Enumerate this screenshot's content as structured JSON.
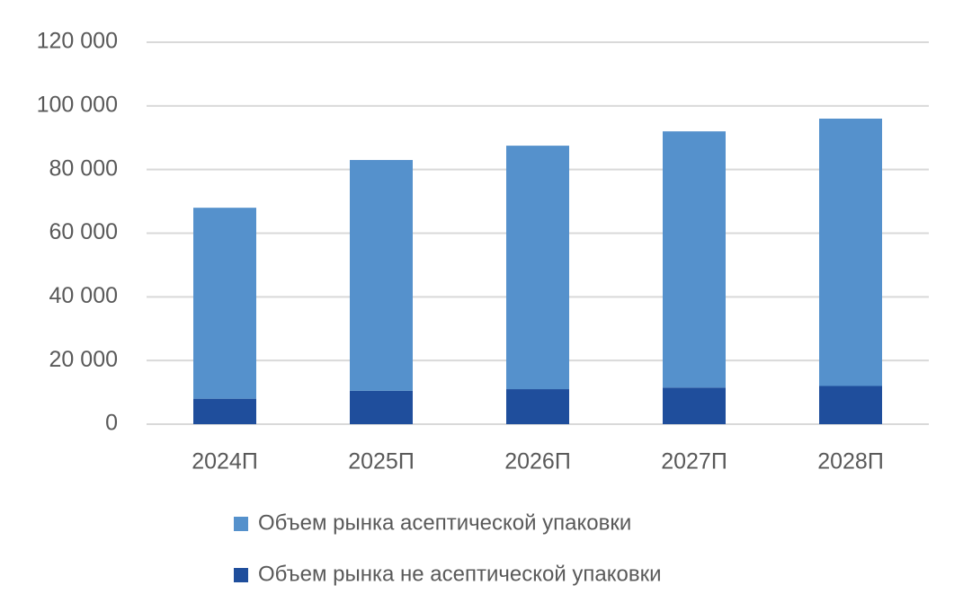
{
  "chart_data": {
    "type": "stacked_bar",
    "categories": [
      "2024П",
      "2025П",
      "2026П",
      "2027П",
      "2028П"
    ],
    "series": [
      {
        "name": "Объем рынка асептической упаковки",
        "color": "#5591cc",
        "values": [
          60000,
          72500,
          76500,
          80500,
          84000
        ]
      },
      {
        "name": "Объем рынка не асептической упаковки",
        "color": "#1f4e9c",
        "values": [
          8000,
          10500,
          11000,
          11500,
          12000
        ]
      }
    ],
    "ylim": [
      0,
      120000
    ],
    "yticks": [
      0,
      {
        "value": 20000,
        "label": "20 000"
      },
      {
        "value": 40000,
        "label": "40 000"
      },
      {
        "value": 60000,
        "label": "60 000"
      },
      {
        "value": 80000,
        "label": "80 000"
      },
      {
        "value": 100000,
        "label": "100 000"
      },
      {
        "value": 120000,
        "label": "120 000"
      }
    ],
    "grid": true,
    "legend": "bottom"
  }
}
